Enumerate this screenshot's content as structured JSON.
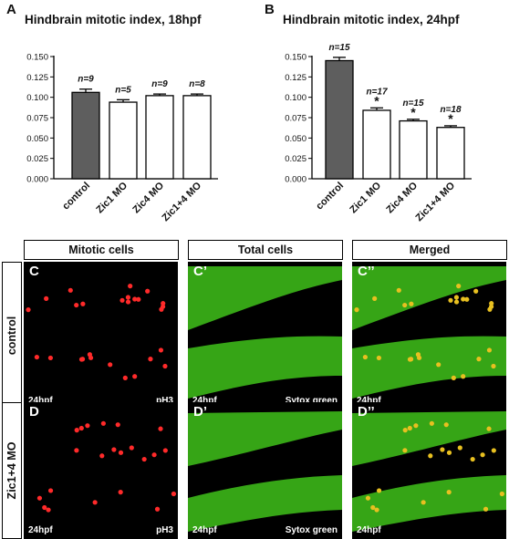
{
  "panels": {
    "A": "A",
    "B": "B"
  },
  "chart_data": [
    {
      "type": "bar",
      "panel": "A",
      "title": "Hindbrain mitotic index, 18hpf",
      "categories": [
        "control",
        "Zic1 MO",
        "Zic4 MO",
        "Zic1+4 MO"
      ],
      "values": [
        0.106,
        0.094,
        0.102,
        0.102
      ],
      "errors": [
        0.004,
        0.003,
        0.002,
        0.002
      ],
      "n_labels": [
        "n=9",
        "n=5",
        "n=9",
        "n=8"
      ],
      "significance": [
        "",
        "",
        "",
        ""
      ],
      "bar_fills": [
        "#5e5e5e",
        "#ffffff",
        "#ffffff",
        "#ffffff"
      ],
      "ylim": [
        0,
        0.15
      ],
      "yticks": [
        "0.000",
        "0.025",
        "0.050",
        "0.075",
        "0.100",
        "0.125",
        "0.150"
      ]
    },
    {
      "type": "bar",
      "panel": "B",
      "title": "Hindbrain mitotic index, 24hpf",
      "categories": [
        "control",
        "Zic1 MO",
        "Zic4 MO",
        "Zic1+4 MO"
      ],
      "values": [
        0.145,
        0.084,
        0.071,
        0.063
      ],
      "errors": [
        0.004,
        0.003,
        0.002,
        0.002
      ],
      "n_labels": [
        "n=15",
        "n=17",
        "n=15",
        "n=18"
      ],
      "significance": [
        "",
        "*",
        "*",
        "*"
      ],
      "bar_fills": [
        "#5e5e5e",
        "#ffffff",
        "#ffffff",
        "#ffffff"
      ],
      "ylim": [
        0,
        0.15
      ],
      "yticks": [
        "0.000",
        "0.025",
        "0.050",
        "0.075",
        "0.100",
        "0.125",
        "0.150"
      ]
    }
  ],
  "micrographs": {
    "columns": [
      "Mitotic cells",
      "Total cells",
      "Merged"
    ],
    "rows": [
      "control",
      "Zic1+4 MO"
    ],
    "labels": [
      [
        "C",
        "C’",
        "C’’"
      ],
      [
        "D",
        "D’",
        "D’’"
      ]
    ],
    "stage": "24hpf",
    "stains": [
      "pH3",
      "Sytox green",
      ""
    ],
    "colors": {
      "red": "#ff2a2a",
      "green": "#3fc21a",
      "yellow": "#e8c020"
    }
  }
}
